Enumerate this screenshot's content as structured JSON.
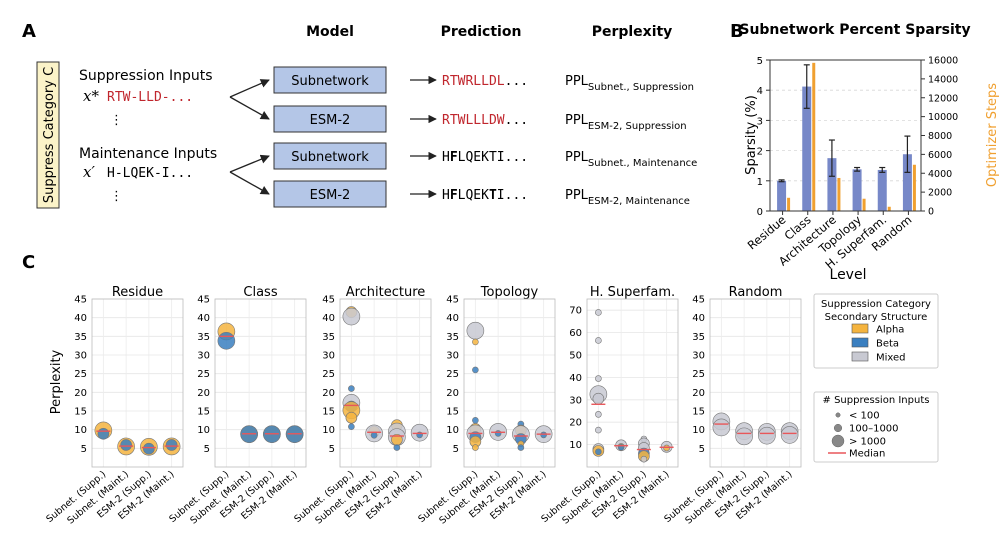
{
  "panel_a": {
    "letter": "A",
    "col_headers": [
      "Model",
      "Prediction",
      "Perplexity"
    ],
    "side_label": "Suppress Category C",
    "suppression_title": "Suppression Inputs",
    "suppression_var": "x*",
    "suppression_seq": "RTW-LLD-...",
    "maintenance_title": "Maintenance Inputs",
    "maintenance_var": "x′",
    "maintenance_seq": "H-LQEK-I...",
    "ellipsis": "⋮",
    "models": [
      "Subnetwork",
      "ESM-2",
      "Subnetwork",
      "ESM-2"
    ],
    "predictions": [
      {
        "segments": [
          {
            "t": "RTWRLLDL",
            "c": "red"
          },
          {
            "t": "...",
            "c": "black"
          }
        ]
      },
      {
        "segments": [
          {
            "t": "RTWLLLDW",
            "c": "red"
          },
          {
            "t": "...",
            "c": "black"
          }
        ]
      },
      {
        "segments": [
          {
            "t": "H",
            "c": "black"
          },
          {
            "t": "F",
            "c": "bold"
          },
          {
            "t": "LQEKTI",
            "c": "black"
          },
          {
            "t": "...",
            "c": "black"
          }
        ]
      },
      {
        "segments": [
          {
            "t": "H",
            "c": "black"
          },
          {
            "t": "F",
            "c": "bold"
          },
          {
            "t": "LQEK",
            "c": "black"
          },
          {
            "t": "T",
            "c": "bold"
          },
          {
            "t": "I",
            "c": "black"
          },
          {
            "t": "...",
            "c": "black"
          }
        ]
      }
    ],
    "ppl_main": "PPL",
    "ppl_subs": [
      "Subnet., Suppression",
      "ESM-2, Suppression",
      "Subnet., Maintenance",
      "ESM-2, Maintenance"
    ]
  },
  "panel_b": {
    "letter": "B",
    "chart_data": {
      "type": "bar",
      "title": "Subnetwork Percent Sparsity",
      "xlabel": "Level",
      "ylabel": "Sparsity (%)",
      "y2label": "Optimizer Steps",
      "categories": [
        "Residue",
        "Class",
        "Architecture",
        "Topology",
        "H. Superfam.",
        "Random"
      ],
      "ylim": [
        0,
        5
      ],
      "y2lim": [
        0,
        16000
      ],
      "yticks": [
        0,
        1,
        2,
        3,
        4,
        5
      ],
      "y2ticks": [
        0,
        2000,
        4000,
        6000,
        8000,
        10000,
        12000,
        14000,
        16000
      ],
      "series": [
        {
          "name": "Sparsity (%)",
          "axis": "left",
          "color": "#7788c8",
          "values": [
            1.0,
            4.12,
            1.75,
            1.38,
            1.36,
            1.88
          ],
          "err": [
            0.03,
            0.72,
            0.6,
            0.06,
            0.08,
            0.6
          ]
        },
        {
          "name": "Optimizer Steps",
          "axis": "right",
          "color": "#f0a030",
          "values": [
            1400,
            15700,
            3500,
            1300,
            450,
            4900
          ]
        }
      ]
    }
  },
  "panel_c": {
    "letter": "C",
    "chart_data": {
      "type": "scatter",
      "ylabel": "Perplexity",
      "categories": [
        "Subnet. (Supp.)",
        "Subnet. (Maint.)",
        "ESM-2 (Supp.)",
        "ESM-2 (Maint.)"
      ],
      "legend_title_1": "Suppression Category",
      "legend_title_2": "Secondary Structure",
      "legend_structures": [
        {
          "label": "Alpha",
          "color": "#f5b43f"
        },
        {
          "label": "Beta",
          "color": "#3a7fc0"
        },
        {
          "label": "Mixed",
          "color": "#c8c9d2"
        }
      ],
      "legend_size_title": "# Suppression Inputs",
      "legend_sizes": [
        {
          "label": "< 100",
          "size": "small"
        },
        {
          "label": "100–1000",
          "size": "medium"
        },
        {
          "label": "> 1000",
          "size": "large"
        }
      ],
      "legend_median": "Median",
      "median_color": "#e8575a",
      "panels": [
        {
          "title": "Residue",
          "ylim": [
            0,
            45
          ],
          "yticks": [
            5,
            10,
            15,
            20,
            25,
            30,
            35,
            40,
            45
          ],
          "medians": [
            9.6,
            5.6,
            5.2,
            5.6
          ],
          "points": [
            {
              "x": 0,
              "y": 9.8,
              "s": "alpha",
              "size": "large"
            },
            {
              "x": 0,
              "y": 8.9,
              "s": "beta",
              "size": "medium"
            },
            {
              "x": 1,
              "y": 5.5,
              "s": "alpha",
              "size": "large"
            },
            {
              "x": 1,
              "y": 5.9,
              "s": "beta",
              "size": "medium"
            },
            {
              "x": 2,
              "y": 5.4,
              "s": "alpha",
              "size": "large"
            },
            {
              "x": 2,
              "y": 4.9,
              "s": "beta",
              "size": "medium"
            },
            {
              "x": 3,
              "y": 5.5,
              "s": "alpha",
              "size": "large"
            },
            {
              "x": 3,
              "y": 5.9,
              "s": "beta",
              "size": "medium"
            }
          ]
        },
        {
          "title": "Class",
          "ylim": [
            0,
            45
          ],
          "yticks": [
            5,
            10,
            15,
            20,
            25,
            30,
            35,
            40,
            45
          ],
          "medians": [
            35,
            8.9,
            8.9,
            8.9
          ],
          "points": [
            {
              "x": 0,
              "y": 36.3,
              "s": "alpha",
              "size": "large"
            },
            {
              "x": 0,
              "y": 33.8,
              "s": "beta",
              "size": "large"
            },
            {
              "x": 1,
              "y": 8.8,
              "s": "alpha",
              "size": "large"
            },
            {
              "x": 1,
              "y": 8.8,
              "s": "beta",
              "size": "large"
            },
            {
              "x": 2,
              "y": 8.8,
              "s": "alpha",
              "size": "large"
            },
            {
              "x": 2,
              "y": 8.8,
              "s": "beta",
              "size": "large"
            },
            {
              "x": 3,
              "y": 8.8,
              "s": "alpha",
              "size": "large"
            },
            {
              "x": 3,
              "y": 8.8,
              "s": "beta",
              "size": "large"
            }
          ]
        },
        {
          "title": "Architecture",
          "ylim": [
            0,
            45
          ],
          "yticks": [
            5,
            10,
            15,
            20,
            25,
            30,
            35,
            40,
            45
          ],
          "medians": [
            16.5,
            9.3,
            8.3,
            9.0
          ],
          "points": [
            {
              "x": 0,
              "y": 41.5,
              "s": "alpha",
              "size": "medium"
            },
            {
              "x": 0,
              "y": 40.3,
              "s": "mixed",
              "size": "large"
            },
            {
              "x": 0,
              "y": 21,
              "s": "beta",
              "size": "small"
            },
            {
              "x": 0,
              "y": 17.2,
              "s": "mixed",
              "size": "large"
            },
            {
              "x": 0,
              "y": 16.2,
              "s": "beta",
              "size": "medium"
            },
            {
              "x": 0,
              "y": 15.2,
              "s": "alpha",
              "size": "large"
            },
            {
              "x": 0,
              "y": 13.2,
              "s": "alpha",
              "size": "medium"
            },
            {
              "x": 0,
              "y": 10.8,
              "s": "beta",
              "size": "small"
            },
            {
              "x": 1,
              "y": 9.5,
              "s": "alpha",
              "size": "medium"
            },
            {
              "x": 1,
              "y": 9.0,
              "s": "mixed",
              "size": "large"
            },
            {
              "x": 1,
              "y": 8.5,
              "s": "beta",
              "size": "small"
            },
            {
              "x": 2,
              "y": 11.2,
              "s": "alpha",
              "size": "medium"
            },
            {
              "x": 2,
              "y": 9.5,
              "s": "mixed",
              "size": "large"
            },
            {
              "x": 2,
              "y": 8.0,
              "s": "mixed",
              "size": "large"
            },
            {
              "x": 2,
              "y": 7.3,
              "s": "alpha",
              "size": "medium"
            },
            {
              "x": 2,
              "y": 5.2,
              "s": "beta",
              "size": "small"
            },
            {
              "x": 3,
              "y": 9.2,
              "s": "mixed",
              "size": "large"
            },
            {
              "x": 3,
              "y": 8.6,
              "s": "beta",
              "size": "small"
            }
          ]
        },
        {
          "title": "Topology",
          "ylim": [
            0,
            45
          ],
          "yticks": [
            5,
            10,
            15,
            20,
            25,
            30,
            35,
            40,
            45
          ],
          "medians": [
            9.0,
            9.3,
            8.3,
            8.8
          ],
          "points": [
            {
              "x": 0,
              "y": 36.5,
              "s": "mixed",
              "size": "large"
            },
            {
              "x": 0,
              "y": 33.5,
              "s": "alpha",
              "size": "small"
            },
            {
              "x": 0,
              "y": 26,
              "s": "beta",
              "size": "small"
            },
            {
              "x": 0,
              "y": 12.5,
              "s": "beta",
              "size": "small"
            },
            {
              "x": 0,
              "y": 10.2,
              "s": "alpha",
              "size": "medium"
            },
            {
              "x": 0,
              "y": 9.0,
              "s": "mixed",
              "size": "large"
            },
            {
              "x": 0,
              "y": 8.0,
              "s": "beta",
              "size": "medium"
            },
            {
              "x": 0,
              "y": 6.8,
              "s": "alpha",
              "size": "medium"
            },
            {
              "x": 0,
              "y": 5.2,
              "s": "alpha",
              "size": "small"
            },
            {
              "x": 1,
              "y": 9.4,
              "s": "mixed",
              "size": "large"
            },
            {
              "x": 1,
              "y": 9.0,
              "s": "beta",
              "size": "small"
            },
            {
              "x": 2,
              "y": 11.5,
              "s": "beta",
              "size": "small"
            },
            {
              "x": 2,
              "y": 9.8,
              "s": "alpha",
              "size": "medium"
            },
            {
              "x": 2,
              "y": 8.8,
              "s": "mixed",
              "size": "large"
            },
            {
              "x": 2,
              "y": 7.5,
              "s": "beta",
              "size": "medium"
            },
            {
              "x": 2,
              "y": 6.2,
              "s": "alpha",
              "size": "small"
            },
            {
              "x": 2,
              "y": 5.2,
              "s": "beta",
              "size": "small"
            },
            {
              "x": 3,
              "y": 8.8,
              "s": "mixed",
              "size": "large"
            },
            {
              "x": 3,
              "y": 8.6,
              "s": "beta",
              "size": "small"
            }
          ]
        },
        {
          "title": "H. Superfam.",
          "ylim": [
            0,
            75
          ],
          "yticks": [
            10,
            20,
            30,
            40,
            50,
            60,
            70
          ],
          "medians": [
            28,
            9.5,
            7.8,
            8.8
          ],
          "points": [
            {
              "x": 0,
              "y": 69,
              "s": "mixed",
              "size": "small"
            },
            {
              "x": 0,
              "y": 56.5,
              "s": "mixed",
              "size": "small"
            },
            {
              "x": 0,
              "y": 39.5,
              "s": "mixed",
              "size": "small"
            },
            {
              "x": 0,
              "y": 32.5,
              "s": "mixed",
              "size": "large"
            },
            {
              "x": 0,
              "y": 30.5,
              "s": "mixed",
              "size": "medium"
            },
            {
              "x": 0,
              "y": 23.5,
              "s": "mixed",
              "size": "small"
            },
            {
              "x": 0,
              "y": 16.5,
              "s": "mixed",
              "size": "small"
            },
            {
              "x": 0,
              "y": 8.0,
              "s": "mixed",
              "size": "medium"
            },
            {
              "x": 0,
              "y": 7.2,
              "s": "alpha",
              "size": "medium"
            },
            {
              "x": 0,
              "y": 6.8,
              "s": "beta",
              "size": "small"
            },
            {
              "x": 1,
              "y": 9.7,
              "s": "mixed",
              "size": "medium"
            },
            {
              "x": 1,
              "y": 9.2,
              "s": "alpha",
              "size": "small"
            },
            {
              "x": 1,
              "y": 8.8,
              "s": "beta",
              "size": "small"
            },
            {
              "x": 2,
              "y": 12.5,
              "s": "mixed",
              "size": "small"
            },
            {
              "x": 2,
              "y": 10.5,
              "s": "mixed",
              "size": "medium"
            },
            {
              "x": 2,
              "y": 8.5,
              "s": "mixed",
              "size": "medium"
            },
            {
              "x": 2,
              "y": 6.0,
              "s": "beta",
              "size": "medium"
            },
            {
              "x": 2,
              "y": 4.8,
              "s": "alpha",
              "size": "medium"
            },
            {
              "x": 2,
              "y": 3.5,
              "s": "mixed",
              "size": "small"
            },
            {
              "x": 3,
              "y": 9.0,
              "s": "mixed",
              "size": "medium"
            },
            {
              "x": 3,
              "y": 8.5,
              "s": "alpha",
              "size": "small"
            }
          ]
        },
        {
          "title": "Random",
          "ylim": [
            0,
            45
          ],
          "yticks": [
            5,
            10,
            15,
            20,
            25,
            30,
            35,
            40,
            45
          ],
          "medians": [
            11.5,
            9.0,
            9.0,
            9.0
          ],
          "points": [
            {
              "x": 0,
              "y": 12.2,
              "s": "mixed",
              "size": "large"
            },
            {
              "x": 0,
              "y": 10.6,
              "s": "mixed",
              "size": "large"
            },
            {
              "x": 1,
              "y": 9.6,
              "s": "mixed",
              "size": "large"
            },
            {
              "x": 1,
              "y": 8.2,
              "s": "mixed",
              "size": "large"
            },
            {
              "x": 2,
              "y": 9.4,
              "s": "mixed",
              "size": "large"
            },
            {
              "x": 2,
              "y": 8.4,
              "s": "mixed",
              "size": "large"
            },
            {
              "x": 3,
              "y": 9.6,
              "s": "mixed",
              "size": "large"
            },
            {
              "x": 3,
              "y": 8.6,
              "s": "mixed",
              "size": "large"
            }
          ]
        }
      ]
    }
  }
}
